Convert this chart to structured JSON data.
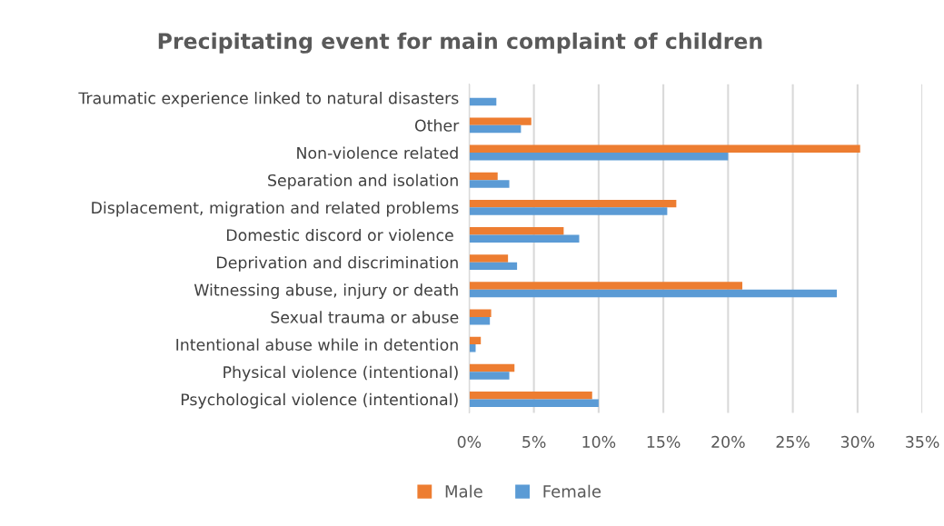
{
  "chart_data": {
    "type": "bar",
    "orientation": "horizontal",
    "title": "Precipitating event for main complaint of children",
    "categories": [
      "Traumatic experience linked to natural disasters",
      "Other",
      "Non-violence related",
      "Separation and isolation",
      "Displacement, migration and related problems",
      "Domestic discord or violence ",
      "Deprivation and discrimination",
      "Witnessing abuse, injury or death",
      "Sexual trauma or abuse",
      "Intentional abuse while in detention",
      "Physical violence (intentional)",
      "Psychological violence (intentional)"
    ],
    "series": [
      {
        "name": "Male",
        "color": "#ed7d31",
        "values": [
          null,
          4.8,
          30.2,
          2.2,
          16.0,
          7.3,
          3.0,
          21.1,
          1.7,
          0.9,
          3.5,
          9.5
        ]
      },
      {
        "name": "Female",
        "color": "#5b9bd5",
        "values": [
          2.1,
          4.0,
          20.0,
          3.1,
          15.3,
          8.5,
          3.7,
          28.4,
          1.6,
          0.5,
          3.1,
          10.0
        ]
      }
    ],
    "xlim": [
      0,
      35
    ],
    "xticks": [
      {
        "value": 0,
        "label": "0%"
      },
      {
        "value": 5,
        "label": "5%"
      },
      {
        "value": 10,
        "label": "10%"
      },
      {
        "value": 15,
        "label": "15%"
      },
      {
        "value": 20,
        "label": "20%"
      },
      {
        "value": 25,
        "label": "25%"
      },
      {
        "value": 30,
        "label": "30%"
      },
      {
        "value": 35,
        "label": "35%"
      }
    ],
    "grid": "x",
    "legend": "bottom"
  }
}
